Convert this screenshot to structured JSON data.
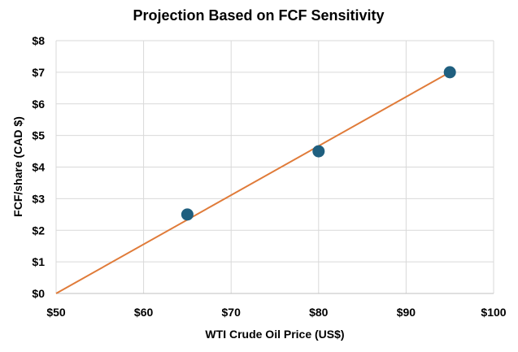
{
  "chart_data": {
    "type": "scatter",
    "title": "Projection Based on FCF Sensitivity",
    "xlabel": "WTI Crude Oil Price (US$)",
    "ylabel": "FCF/share (CAD $)",
    "xlim": [
      50,
      100
    ],
    "ylim": [
      0,
      8
    ],
    "x_ticks": [
      50,
      60,
      70,
      80,
      90,
      100
    ],
    "y_ticks": [
      0,
      1,
      2,
      3,
      4,
      5,
      6,
      7,
      8
    ],
    "x_tick_labels": [
      "$50",
      "$60",
      "$70",
      "$80",
      "$90",
      "$100"
    ],
    "y_tick_labels": [
      "$0",
      "$1",
      "$2",
      "$3",
      "$4",
      "$5",
      "$6",
      "$7",
      "$8"
    ],
    "grid": true,
    "series": [
      {
        "type": "scatter",
        "color": "#1f5f7f",
        "points": [
          {
            "x": 65,
            "y": 2.5
          },
          {
            "x": 80,
            "y": 4.5
          },
          {
            "x": 95,
            "y": 7.0
          }
        ]
      }
    ],
    "trendline": {
      "type": "linear",
      "color": "#e07b39",
      "from": {
        "x": 50,
        "y": 0
      },
      "to": {
        "x": 95,
        "y": 7.0
      }
    }
  }
}
